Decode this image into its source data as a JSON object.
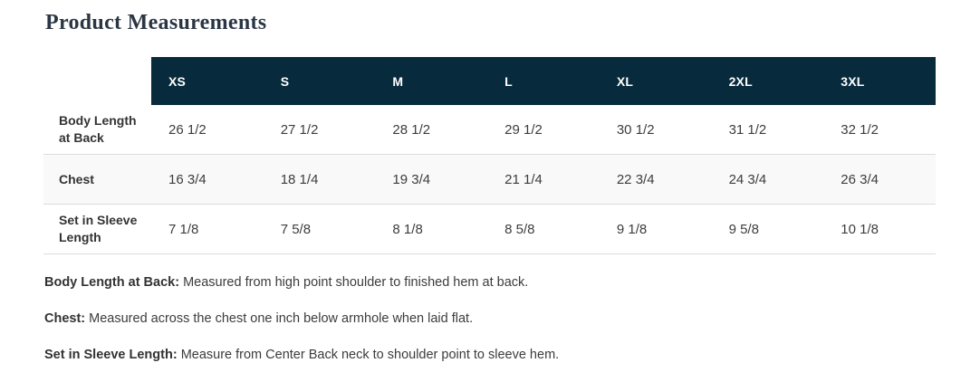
{
  "page": {
    "title": "Product Measurements"
  },
  "table": {
    "sizes": [
      "XS",
      "S",
      "M",
      "L",
      "XL",
      "2XL",
      "3XL"
    ],
    "rows": [
      {
        "label": "Body Length at Back",
        "values": [
          "26 1/2",
          "27 1/2",
          "28 1/2",
          "29 1/2",
          "30 1/2",
          "31 1/2",
          "32 1/2"
        ]
      },
      {
        "label": "Chest",
        "values": [
          "16 3/4",
          "18 1/4",
          "19 3/4",
          "21 1/4",
          "22 3/4",
          "24 3/4",
          "26 3/4"
        ]
      },
      {
        "label": "Set in Sleeve Length",
        "values": [
          "7 1/8",
          "7 5/8",
          "8 1/8",
          "8 5/8",
          "9 1/8",
          "9 5/8",
          "10 1/8"
        ]
      }
    ]
  },
  "footnotes": [
    {
      "term": "Body Length at Back:",
      "definition": "Measured from high point shoulder to finished hem at back."
    },
    {
      "term": "Chest:",
      "definition": "Measured across the chest one inch below armhole when laid flat."
    },
    {
      "term": "Set in Sleeve Length:",
      "definition": "Measure from Center Back neck to shoulder point to sleeve hem."
    }
  ],
  "colors": {
    "header_bg": "#072a3c",
    "header_text": "#ffffff",
    "stripe_bg": "#f9f9f9",
    "divider": "#dcdcdc",
    "title_text": "#2b3645"
  }
}
